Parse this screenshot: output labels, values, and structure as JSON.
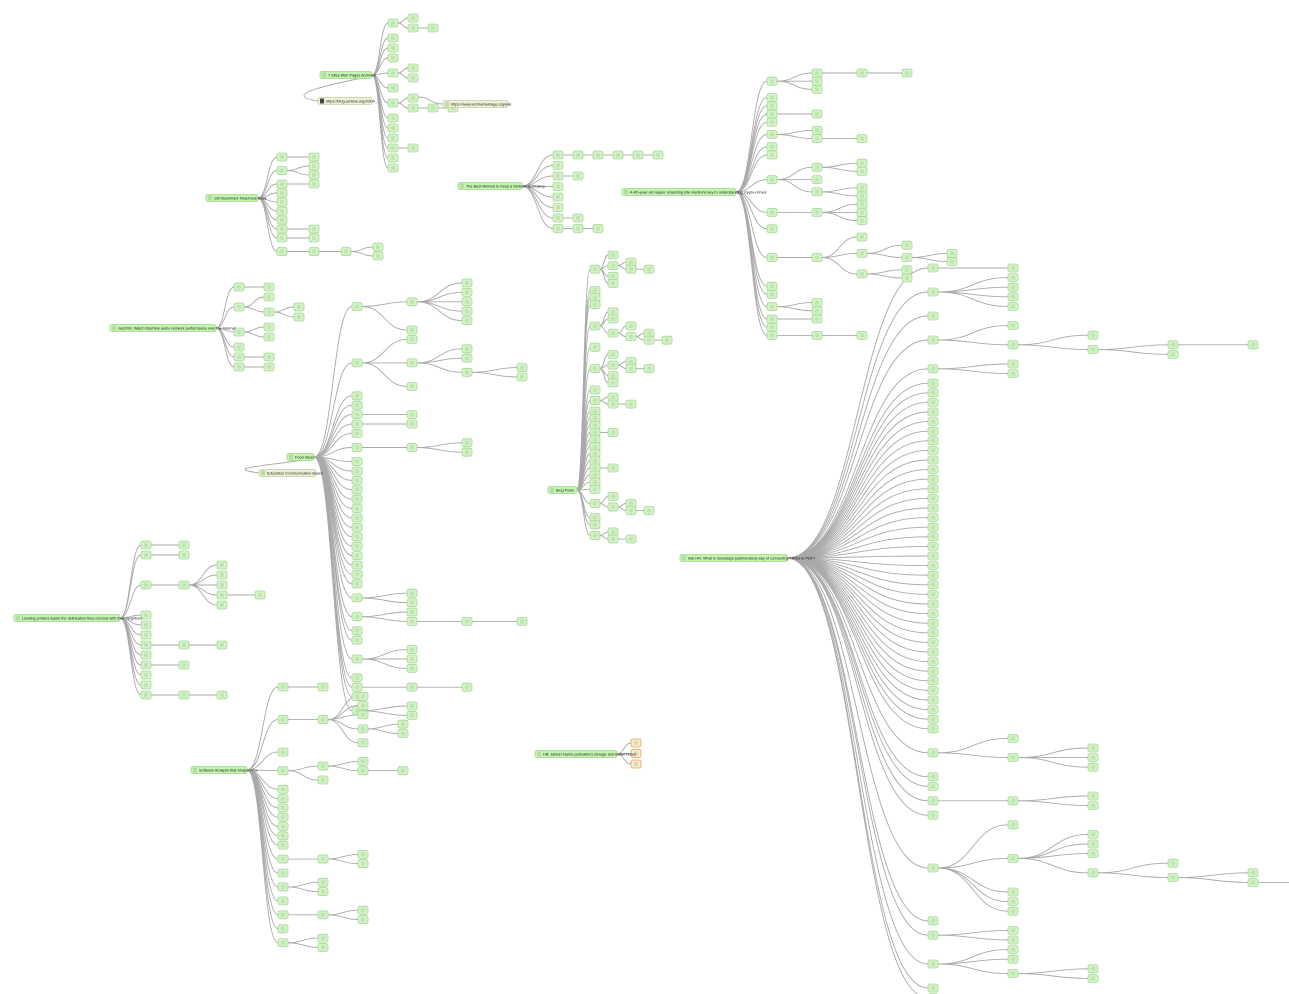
{
  "colors": {
    "node": "#d3f3c6",
    "root": "#c4f5ae",
    "edge": "#a9a9a9",
    "note": "#eef0d6",
    "highlight": "#f0a050"
  },
  "trees": [
    {
      "label": "7 Sites Web Pages Archived",
      "children": [
        [
          0,
          [
            0
          ]
        ],
        0,
        0,
        0,
        [
          0,
          0
        ],
        0,
        [
          0,
          [
            [
              0
            ]
          ]
        ],
        0,
        0,
        0,
        [
          0
        ],
        0,
        0
      ]
    },
    {
      "label": "The Best Method to Keep a Website is Closing",
      "children": [
        [
          [
            [
              [
                [
                  0
                ]
              ]
            ]
          ]
        ],
        0,
        [
          0
        ],
        0,
        0,
        0,
        [
          0
        ],
        [
          [
            0
          ]
        ]
      ]
    },
    {
      "label": "A 4th-year-old rapper smashing site mentions key to understanding crypto-crimes",
      "children": [
        [
          [
            [
              0
            ]
          ],
          0,
          0
        ],
        0,
        0,
        [
          0
        ],
        0,
        [
          0,
          [
            0
          ]
        ],
        0,
        0,
        [
          [
            0,
            0
          ],
          0,
          [
            0,
            0
          ]
        ],
        [
          [
            0,
            0,
            0
          ]
        ],
        0,
        [
          [
            0,
            [
              0,
              [
                0,
                0
              ]
            ],
            [
              0,
              0
            ]
          ]
        ],
        0,
        0,
        [
          0,
          0
        ],
        [
          0
        ],
        0,
        [
          [
            0
          ]
        ]
      ]
    },
    {
      "label": "100 Bookmark Telephone Book",
      "children": [
        [
          0
        ],
        [
          0,
          0
        ],
        [
          0
        ],
        0,
        0,
        0,
        0,
        [
          0
        ],
        [
          0
        ],
        [
          [
            [
              0,
              0
            ]
          ]
        ]
      ]
    },
    {
      "label": "JazzFlix: Watch Machine audio network performance over the Internet",
      "children": [
        [
          0
        ],
        [
          0,
          [
            0,
            0
          ]
        ],
        [
          0,
          0
        ],
        0,
        [
          0
        ],
        [
          0
        ]
      ]
    },
    {
      "label": "Food Ideas",
      "children": [
        [
          [
            0,
            0,
            0,
            0,
            0
          ],
          0
        ],
        [
          0,
          [
            0,
            0,
            [
              0,
              0
            ]
          ],
          0
        ],
        0,
        0,
        [
          0
        ],
        [
          0
        ],
        0,
        [
          [
            0,
            0
          ]
        ],
        0,
        0,
        0,
        0,
        0,
        0,
        0,
        0,
        0,
        0,
        0,
        0,
        0,
        0,
        [
          0,
          0
        ],
        [
          0,
          [
            [
              0
            ]
          ]
        ],
        0,
        0,
        [
          0,
          0,
          0
        ],
        0,
        [
          [
            0
          ]
        ],
        0,
        [
          0,
          0
        ]
      ]
    },
    {
      "label": "Blog Posts",
      "children": [
        [
          0,
          [
            0,
            [
              0
            ]
          ],
          0,
          0
        ],
        0,
        0,
        0,
        [
          0,
          0,
          [
            0,
            [
              0,
              [
                0
              ]
            ]
          ]
        ],
        0,
        [
          0,
          [
            0,
            [
              0
            ]
          ],
          0,
          0
        ],
        0,
        [
          0,
          [
            0
          ]
        ],
        0,
        0,
        0,
        [
          0
        ],
        0,
        0,
        0,
        0,
        [
          0
        ],
        0,
        0,
        0,
        [
          0,
          [
            0,
            [
              0
            ]
          ]
        ],
        0,
        0,
        [
          0,
          [
            0
          ]
        ]
      ]
    },
    {
      "label": "Ask HN: What is nowadays (opinionated) way of connecting TRNG to PDF?",
      "children": [
        [
          0
        ],
        [
          0,
          0,
          0,
          0
        ],
        0,
        [
          0,
          [
            0,
            [
              [
                0
              ],
              0
            ]
          ]
        ],
        [
          0,
          0
        ],
        0,
        0,
        0,
        0,
        0,
        0,
        0,
        0,
        0,
        0,
        0,
        0,
        0,
        0,
        0,
        0,
        0,
        0,
        0,
        0,
        0,
        0,
        0,
        0,
        0,
        0,
        0,
        0,
        0,
        0,
        0,
        0,
        0,
        0,
        0,
        0,
        0,
        [
          0,
          [
            0,
            0,
            0
          ]
        ],
        0,
        0,
        [
          [
            0,
            0
          ]
        ],
        0,
        [
          0,
          [
            0,
            0,
            0,
            [
              0,
              [
                0,
                [
                  0
                ]
              ]
            ]
          ],
          0,
          0,
          0
        ],
        0,
        [
          0,
          0
        ],
        [
          0,
          0,
          [
            0,
            0
          ]
        ],
        0,
        0
      ]
    },
    {
      "label": "Leading printers waste the delineation they conceal with their neighbors",
      "children": [
        [
          0
        ],
        [
          0
        ],
        [
          [
            0,
            0,
            0,
            [
              0
            ],
            0
          ]
        ],
        0,
        0,
        0,
        [
          [
            0
          ]
        ],
        0,
        [
          0
        ],
        0,
        0,
        [
          [
            0
          ]
        ]
      ]
    },
    {
      "label": "Software Analysis that Shaped You",
      "children": [
        [
          0
        ],
        [
          [
            0,
            0,
            0,
            [
              0,
              0
            ],
            0
          ]
        ],
        0,
        [
          [
            0,
            [
              0
            ]
          ],
          0
        ],
        0,
        0,
        0,
        0,
        0,
        0,
        0,
        [
          [
            0,
            0
          ]
        ],
        0,
        [
          0,
          0
        ],
        0,
        [
          [
            0,
            0
          ]
        ],
        0,
        [
          0,
          0
        ]
      ]
    },
    {
      "label": "Hill: Jabber Name (activation) storage and Install Notes",
      "children": [
        0,
        0,
        0
      ],
      "highlighted": true
    }
  ],
  "notes": [
    {
      "label": "https://blog.archive.org/2014/..."
    },
    {
      "label": "https://www.archiveheritage.org/wiki"
    },
    {
      "label": "Education Communication Board"
    }
  ]
}
